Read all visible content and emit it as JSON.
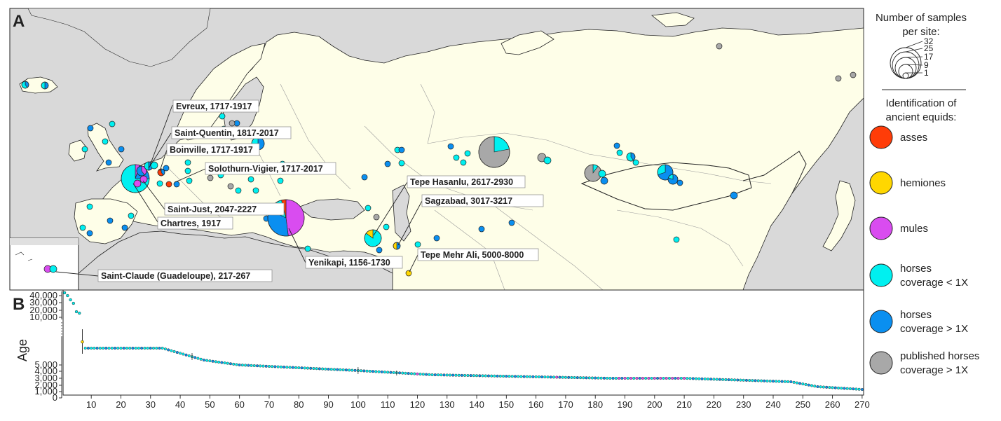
{
  "panels": {
    "a": "A",
    "b": "B"
  },
  "legend": {
    "size_title_1": "Number of samples",
    "size_title_2": "per site:",
    "size_values": [
      "32",
      "25",
      "17",
      "9",
      "1"
    ],
    "id_title_1": "Identification of",
    "id_title_2": "ancient equids:",
    "categories": [
      {
        "key": "asses",
        "lines": [
          "asses"
        ],
        "color": "#ff3c08"
      },
      {
        "key": "hemiones",
        "lines": [
          "hemiones"
        ],
        "color": "#ffd700"
      },
      {
        "key": "mules",
        "lines": [
          "mules"
        ],
        "color": "#d94cf0"
      },
      {
        "key": "horses_low",
        "lines": [
          "horses",
          "coverage < 1X"
        ],
        "color": "#00f0f0"
      },
      {
        "key": "horses_high",
        "lines": [
          "horses",
          "coverage > 1X"
        ],
        "color": "#0a8ff0"
      },
      {
        "key": "published",
        "lines": [
          "published horses",
          "coverage > 1X"
        ],
        "color": "#a8a8a8"
      }
    ]
  },
  "site_labels": [
    {
      "text": "Evreux, 1717-1917"
    },
    {
      "text": "Saint-Quentin, 1817-2017"
    },
    {
      "text": "Boinville, 1717-1917"
    },
    {
      "text": "Solothurn-Vigier, 1717-2017"
    },
    {
      "text": "Saint-Just, 2047-2227"
    },
    {
      "text": "Chartres, 1917"
    },
    {
      "text": "Tepe Hasanlu, 2617-2930"
    },
    {
      "text": "Sagzabad, 3017-3217"
    },
    {
      "text": "Yenikapi, 1156-1730"
    },
    {
      "text": "Tepe Mehr Ali, 5000-8000"
    },
    {
      "text": "Saint-Claude (Guadeloupe), 217-267"
    }
  ],
  "age_panel": {
    "ylabel": "Age",
    "y_upper_ticks": [
      "40,000",
      "30,000",
      "20,000",
      "10,000"
    ],
    "y_lower_ticks": [
      "5,000",
      "4,000",
      "3,000",
      "2,000",
      "1,000",
      "0"
    ],
    "x_ticks": [
      "10",
      "20",
      "30",
      "40",
      "50",
      "60",
      "70",
      "80",
      "90",
      "100",
      "110",
      "120",
      "130",
      "140",
      "150",
      "160",
      "170",
      "180",
      "190",
      "200",
      "210",
      "220",
      "230",
      "240",
      "250",
      "260",
      "270"
    ]
  }
}
